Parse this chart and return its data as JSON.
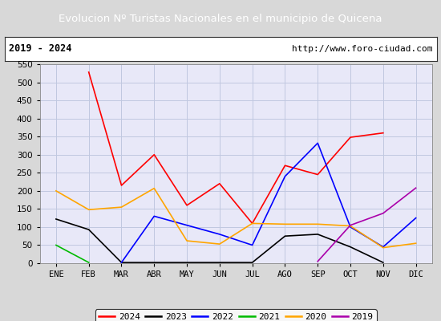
{
  "title": "Evolucion Nº Turistas Nacionales en el municipio de Quicena",
  "subtitle_left": "2019 - 2024",
  "subtitle_right": "http://www.foro-ciudad.com",
  "months": [
    "ENE",
    "FEB",
    "MAR",
    "ABR",
    "MAY",
    "JUN",
    "JUL",
    "AGO",
    "SEP",
    "OCT",
    "NOV",
    "DIC"
  ],
  "series": {
    "2024": [
      null,
      528,
      215,
      300,
      160,
      220,
      110,
      270,
      245,
      348,
      360,
      null
    ],
    "2023": [
      122,
      93,
      2,
      2,
      2,
      2,
      2,
      75,
      80,
      45,
      2,
      null
    ],
    "2022": [
      null,
      null,
      2,
      130,
      105,
      80,
      50,
      240,
      332,
      100,
      45,
      125
    ],
    "2021": [
      50,
      2,
      null,
      null,
      null,
      null,
      null,
      null,
      null,
      null,
      null,
      null
    ],
    "2020": [
      200,
      148,
      155,
      207,
      62,
      53,
      110,
      108,
      108,
      103,
      43,
      55
    ],
    "2019": [
      null,
      null,
      null,
      null,
      null,
      null,
      null,
      null,
      5,
      105,
      138,
      208
    ]
  },
  "colors": {
    "2024": "#ff0000",
    "2023": "#000000",
    "2022": "#0000ff",
    "2021": "#00bb00",
    "2020": "#ffa500",
    "2019": "#aa00aa"
  },
  "ylim": [
    0,
    550
  ],
  "yticks": [
    0,
    50,
    100,
    150,
    200,
    250,
    300,
    350,
    400,
    450,
    500,
    550
  ],
  "title_bg": "#4477cc",
  "title_color": "#ffffff",
  "outer_bg": "#d8d8d8",
  "plot_bg": "#e8e8f8",
  "grid_color": "#c0c8e0",
  "border_color": "#555555"
}
